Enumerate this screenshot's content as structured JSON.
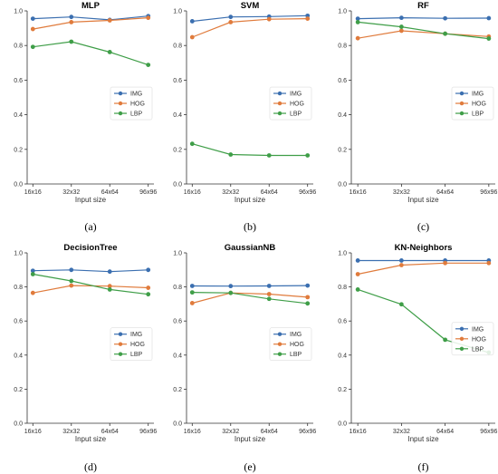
{
  "colors": {
    "IMG": "#3b6fb0",
    "HOG": "#e07b3c",
    "LBP": "#3f9e48"
  },
  "chart_data": [
    {
      "type": "line",
      "title": "MLP",
      "xlabel": "Input size",
      "ylabel": "",
      "caption": "(a)",
      "categories": [
        "16x16",
        "32x32",
        "64x64",
        "96x96"
      ],
      "ylim": [
        0,
        1.0
      ],
      "yticks": [
        "0.0",
        "0.2",
        "0.4",
        "0.6",
        "0.8",
        "1.0"
      ],
      "legend": "center-right",
      "grid": false,
      "series": [
        {
          "name": "IMG",
          "values": [
            0.955,
            0.965,
            0.948,
            0.97
          ]
        },
        {
          "name": "HOG",
          "values": [
            0.895,
            0.935,
            0.945,
            0.96
          ]
        },
        {
          "name": "LBP",
          "values": [
            0.792,
            0.822,
            0.762,
            0.688
          ]
        }
      ]
    },
    {
      "type": "line",
      "title": "SVM",
      "xlabel": "Input size",
      "ylabel": "",
      "caption": "(b)",
      "categories": [
        "16x16",
        "32x32",
        "64x64",
        "96x96"
      ],
      "ylim": [
        0,
        1.0
      ],
      "yticks": [
        "0.0",
        "0.2",
        "0.4",
        "0.6",
        "0.8",
        "1.0"
      ],
      "legend": "center-right",
      "grid": false,
      "series": [
        {
          "name": "IMG",
          "values": [
            0.94,
            0.965,
            0.967,
            0.972
          ]
        },
        {
          "name": "HOG",
          "values": [
            0.848,
            0.935,
            0.952,
            0.955
          ]
        },
        {
          "name": "LBP",
          "values": [
            0.232,
            0.17,
            0.165,
            0.165
          ]
        }
      ]
    },
    {
      "type": "line",
      "title": "RF",
      "xlabel": "Input size",
      "ylabel": "",
      "caption": "(c)",
      "categories": [
        "16x16",
        "32x32",
        "64x64",
        "96x96"
      ],
      "ylim": [
        0,
        1.0
      ],
      "yticks": [
        "0.0",
        "0.2",
        "0.4",
        "0.6",
        "0.8",
        "1.0"
      ],
      "legend": "center-right",
      "grid": false,
      "series": [
        {
          "name": "IMG",
          "values": [
            0.955,
            0.96,
            0.957,
            0.958
          ]
        },
        {
          "name": "HOG",
          "values": [
            0.842,
            0.885,
            0.868,
            0.852
          ]
        },
        {
          "name": "LBP",
          "values": [
            0.935,
            0.908,
            0.868,
            0.84
          ]
        }
      ]
    },
    {
      "type": "line",
      "title": "DecisionTree",
      "xlabel": "Input size",
      "ylabel": "",
      "caption": "(d)",
      "categories": [
        "16x16",
        "32x32",
        "64x64",
        "96x96"
      ],
      "ylim": [
        0,
        1.0
      ],
      "yticks": [
        "0.0",
        "0.2",
        "0.4",
        "0.6",
        "0.8",
        "1.0"
      ],
      "legend": "center-right",
      "grid": false,
      "series": [
        {
          "name": "IMG",
          "values": [
            0.895,
            0.9,
            0.89,
            0.9
          ]
        },
        {
          "name": "HOG",
          "values": [
            0.765,
            0.808,
            0.805,
            0.795
          ]
        },
        {
          "name": "LBP",
          "values": [
            0.875,
            0.835,
            0.785,
            0.757
          ]
        }
      ]
    },
    {
      "type": "line",
      "title": "GaussianNB",
      "xlabel": "Input size",
      "ylabel": "",
      "caption": "(e)",
      "categories": [
        "16x16",
        "32x32",
        "64x64",
        "96x96"
      ],
      "ylim": [
        0,
        1.0
      ],
      "yticks": [
        "0.0",
        "0.2",
        "0.4",
        "0.6",
        "0.8",
        "1.0"
      ],
      "legend": "center-right",
      "grid": false,
      "series": [
        {
          "name": "IMG",
          "values": [
            0.806,
            0.805,
            0.806,
            0.808
          ]
        },
        {
          "name": "HOG",
          "values": [
            0.705,
            0.765,
            0.758,
            0.74
          ]
        },
        {
          "name": "LBP",
          "values": [
            0.768,
            0.765,
            0.73,
            0.703
          ]
        }
      ]
    },
    {
      "type": "line",
      "title": "KN-Neighbors",
      "xlabel": "Input size",
      "ylabel": "",
      "caption": "(f)",
      "categories": [
        "16x16",
        "32x32",
        "64x64",
        "96x96"
      ],
      "ylim": [
        0,
        1.0
      ],
      "yticks": [
        "0.0",
        "0.2",
        "0.4",
        "0.6",
        "0.8",
        "1.0"
      ],
      "legend": "lower-right",
      "grid": false,
      "series": [
        {
          "name": "IMG",
          "values": [
            0.955,
            0.955,
            0.955,
            0.955
          ]
        },
        {
          "name": "HOG",
          "values": [
            0.875,
            0.928,
            0.94,
            0.94
          ]
        },
        {
          "name": "LBP",
          "values": [
            0.785,
            0.698,
            0.49,
            0.415
          ]
        }
      ]
    }
  ]
}
